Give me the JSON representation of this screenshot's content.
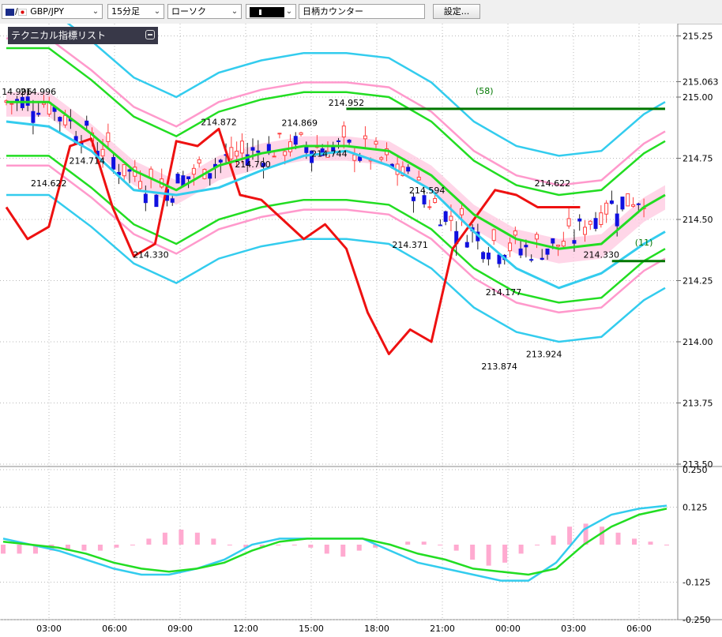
{
  "toolbar": {
    "symbol": "GBP/JPY",
    "interval": "15分足",
    "chart_style": "ローソク",
    "drawing_tool_icon": "candle-color-icon",
    "ticker_counter": "日柄カウンター",
    "settings_label": "設定..."
  },
  "indicator_panel": {
    "title": "テクニカル指標リスト"
  },
  "colors": {
    "candle_up": "#ff4040",
    "candle_down": "#1010e0",
    "red_line": "#ee1111",
    "green_line": "#22dd22",
    "cyan_line": "#33ccee",
    "pink_band": "#ff99cc",
    "macd_hist": "#ffaad0",
    "dark_green_level": "#007700"
  },
  "chart_data": [
    {
      "type": "line",
      "subtype": "candlestick",
      "y_axis": {
        "range": [
          213.5,
          215.3
        ],
        "ticks": [
          "215.25",
          "215.063",
          "215.00",
          "214.75",
          "214.50",
          "214.25",
          "214.00",
          "213.75",
          "213.50"
        ]
      },
      "x_axis": {
        "ticks": [
          "03:00",
          "06:00",
          "09:00",
          "12:00",
          "15:00",
          "18:00",
          "21:00",
          "00:00",
          "03:00",
          "06:00"
        ]
      },
      "annotations": [
        {
          "text": "14.996",
          "x": 0.5,
          "y": 214.996
        },
        {
          "text": "214.996",
          "x": 1.5,
          "y": 214.996
        },
        {
          "text": "214.714",
          "x": 3.8,
          "y": 214.714
        },
        {
          "text": "214.622",
          "x": 2.0,
          "y": 214.622
        },
        {
          "text": "214.330",
          "x": 6.8,
          "y": 214.33
        },
        {
          "text": "214.872",
          "x": 10.0,
          "y": 214.872
        },
        {
          "text": "214.700",
          "x": 11.6,
          "y": 214.7
        },
        {
          "text": "214.869",
          "x": 13.8,
          "y": 214.869
        },
        {
          "text": "214.744",
          "x": 15.2,
          "y": 214.744
        },
        {
          "text": "214.952",
          "x": 16.0,
          "y": 214.952
        },
        {
          "text": "214.371",
          "x": 19.0,
          "y": 214.371
        },
        {
          "text": "214.594",
          "x": 19.8,
          "y": 214.594
        },
        {
          "text": "214.177",
          "x": 23.4,
          "y": 214.177
        },
        {
          "text": "213.874",
          "x": 23.2,
          "y": 213.874
        },
        {
          "text": "213.924",
          "x": 25.3,
          "y": 213.924
        },
        {
          "text": "214.622",
          "x": 25.7,
          "y": 214.622
        },
        {
          "text": "214.330",
          "x": 28.0,
          "y": 214.33
        },
        {
          "text": "(58)",
          "x": 22.5,
          "y": 215.0
        },
        {
          "text": "(11)",
          "x": 30.0,
          "y": 214.38
        }
      ],
      "horizontal_levels": [
        {
          "y": 214.952,
          "x_start": 16.0,
          "x_end": 31.0,
          "label": "(58)"
        },
        {
          "y": 214.33,
          "x_start": 28.5,
          "x_end": 31.0,
          "label": "(11)"
        }
      ],
      "series": [
        {
          "name": "",
          "color": "#ee1111",
          "x": [
            0,
            1,
            2,
            3,
            4,
            5,
            6,
            7,
            8,
            9,
            10,
            11,
            12,
            13,
            14,
            15,
            16,
            17,
            18,
            19,
            20,
            21,
            22,
            23,
            24,
            25,
            26,
            27
          ],
          "values": [
            214.55,
            214.42,
            214.47,
            214.8,
            214.83,
            214.55,
            214.35,
            214.4,
            214.82,
            214.8,
            214.87,
            214.6,
            214.58,
            214.5,
            214.42,
            214.48,
            214.38,
            214.12,
            213.95,
            214.05,
            214.0,
            214.38,
            214.5,
            214.62,
            214.6,
            214.55,
            214.55,
            214.55
          ]
        },
        {
          "name": "",
          "color": "#22dd22",
          "x": [
            0,
            2,
            4,
            6,
            8,
            10,
            12,
            14,
            16,
            18,
            20,
            22,
            24,
            26,
            28,
            30,
            31
          ],
          "values": [
            214.98,
            214.98,
            214.85,
            214.7,
            214.62,
            214.72,
            214.77,
            214.8,
            214.8,
            214.78,
            214.68,
            214.52,
            214.42,
            214.38,
            214.4,
            214.55,
            214.6
          ]
        },
        {
          "name": "",
          "color": "#33ccee",
          "x": [
            0,
            2,
            4,
            6,
            8,
            10,
            12,
            14,
            16,
            18,
            20,
            22,
            24,
            26,
            28,
            30,
            31
          ],
          "values": [
            214.9,
            214.88,
            214.78,
            214.62,
            214.6,
            214.63,
            214.7,
            214.76,
            214.78,
            214.72,
            214.62,
            214.45,
            214.3,
            214.22,
            214.28,
            214.4,
            214.45
          ]
        }
      ]
    },
    {
      "type": "bar",
      "subtype": "macd",
      "y_axis": {
        "range": [
          -0.25,
          0.25
        ],
        "ticks": [
          "0.250",
          "0.125",
          "-0.125",
          "-0.250"
        ]
      },
      "histogram": [
        -0.03,
        -0.03,
        -0.03,
        -0.02,
        -0.02,
        -0.02,
        -0.02,
        -0.01,
        0.0,
        0.02,
        0.04,
        0.05,
        0.04,
        0.02,
        0.0,
        -0.01,
        -0.01,
        0.0,
        0.0,
        -0.01,
        -0.03,
        -0.04,
        -0.02,
        -0.01,
        0.0,
        0.01,
        0.01,
        0.0,
        -0.02,
        -0.05,
        -0.07,
        -0.06,
        -0.03,
        0.0,
        0.03,
        0.06,
        0.07,
        0.06,
        0.04,
        0.02,
        0.01,
        0.0
      ],
      "series": [
        {
          "name": "",
          "color": "#33ccee",
          "values": [
            0.02,
            0.0,
            -0.02,
            -0.05,
            -0.08,
            -0.1,
            -0.1,
            -0.08,
            -0.05,
            0.0,
            0.02,
            0.02,
            0.02,
            0.02,
            -0.02,
            -0.06,
            -0.08,
            -0.1,
            -0.12,
            -0.12,
            -0.06,
            0.05,
            0.1,
            0.12,
            0.13
          ]
        },
        {
          "name": "",
          "color": "#22dd22",
          "values": [
            0.01,
            0.0,
            -0.01,
            -0.03,
            -0.06,
            -0.08,
            -0.09,
            -0.08,
            -0.06,
            -0.02,
            0.01,
            0.02,
            0.02,
            0.02,
            0.0,
            -0.03,
            -0.05,
            -0.08,
            -0.09,
            -0.1,
            -0.08,
            0.0,
            0.06,
            0.1,
            0.12
          ]
        }
      ]
    }
  ]
}
